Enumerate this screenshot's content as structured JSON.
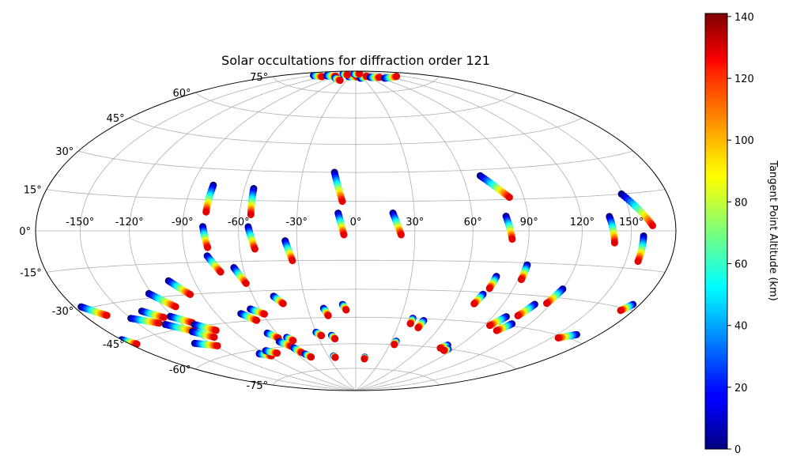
{
  "chart_data": {
    "type": "scatter",
    "title": "Solar occultations for diffraction order 121",
    "projection": "hammer",
    "grid": true,
    "longitude_ticks": [
      {
        "value": -150,
        "label": "-150°"
      },
      {
        "value": -120,
        "label": "-120°"
      },
      {
        "value": -90,
        "label": "-90°"
      },
      {
        "value": -60,
        "label": "-60°"
      },
      {
        "value": -30,
        "label": "-30°"
      },
      {
        "value": 0,
        "label": "0°"
      },
      {
        "value": 30,
        "label": "30°"
      },
      {
        "value": 60,
        "label": "60°"
      },
      {
        "value": 90,
        "label": "90°"
      },
      {
        "value": 120,
        "label": "120°"
      },
      {
        "value": 150,
        "label": "150°"
      }
    ],
    "latitude_ticks": [
      {
        "value": -75,
        "label": "-75°"
      },
      {
        "value": -60,
        "label": "-60°"
      },
      {
        "value": -45,
        "label": "-45°"
      },
      {
        "value": -30,
        "label": "-30°"
      },
      {
        "value": -15,
        "label": "-15°"
      },
      {
        "value": 0,
        "label": "0°"
      },
      {
        "value": 15,
        "label": "15°"
      },
      {
        "value": 30,
        "label": "30°"
      },
      {
        "value": 45,
        "label": "45°"
      },
      {
        "value": 60,
        "label": "60°"
      },
      {
        "value": 75,
        "label": "75°"
      }
    ],
    "colorbar": {
      "label": "Tangent Point Altitude (km)",
      "colormap": "jet",
      "range": [
        0,
        141
      ],
      "ticks": [
        0,
        20,
        40,
        60,
        80,
        100,
        120,
        140
      ],
      "tick_labels": [
        "0",
        "20",
        "40",
        "60",
        "80",
        "100",
        "120",
        "140"
      ]
    },
    "tracks": [
      {
        "lon0": -78,
        "lat0": 22,
        "lon1": -78,
        "lat1": 9
      },
      {
        "lon0": -55,
        "lat0": 21,
        "lon1": -54,
        "lat1": 8
      },
      {
        "lon0": -12,
        "lat0": 30,
        "lon1": -7,
        "lat1": 15
      },
      {
        "lon0": -9,
        "lat0": 9,
        "lon1": -6,
        "lat1": -2
      },
      {
        "lon0": 19,
        "lat0": 9,
        "lon1": 23,
        "lat1": -2
      },
      {
        "lon0": 70,
        "lat0": 27,
        "lon1": 82,
        "lat1": 16
      },
      {
        "lon0": 78,
        "lat0": 7,
        "lon1": 81,
        "lat1": -4
      },
      {
        "lon0": 137,
        "lat0": 6,
        "lon1": 140,
        "lat1": -5
      },
      {
        "lon0": 149,
        "lat0": 15,
        "lon1": 164,
        "lat1": 2
      },
      {
        "lon0": 158,
        "lat0": -2,
        "lon1": 158,
        "lat1": -12
      },
      {
        "lon0": -79,
        "lat0": 2,
        "lon1": -77,
        "lat1": -8
      },
      {
        "lon0": -55,
        "lat0": 2,
        "lon1": -52,
        "lat1": -9
      },
      {
        "lon0": -36,
        "lat0": -5,
        "lon1": -33,
        "lat1": -15
      },
      {
        "lon0": -78,
        "lat0": -12,
        "lon1": -73,
        "lat1": -20
      },
      {
        "lon0": -65,
        "lat0": -18,
        "lon1": -61,
        "lat1": -26
      },
      {
        "lon0": 92,
        "lat0": -16,
        "lon1": 92,
        "lat1": -23
      },
      {
        "lon0": 77,
        "lat0": -22,
        "lon1": 76,
        "lat1": -28
      },
      {
        "lon0": 74,
        "lat0": -31,
        "lon1": 72,
        "lat1": -36
      },
      {
        "lon0": 120,
        "lat0": -26,
        "lon1": 117,
        "lat1": -33
      },
      {
        "lon0": 110,
        "lat0": -34,
        "lon1": 106,
        "lat1": -40
      },
      {
        "lon0": 99,
        "lat0": -41,
        "lon1": 94,
        "lat1": -46
      },
      {
        "lon0": 108,
        "lat0": -44,
        "lon1": 103,
        "lat1": -48
      },
      {
        "lon0": -105,
        "lat0": -23,
        "lon1": -97,
        "lat1": -30
      },
      {
        "lon0": -122,
        "lat0": -28,
        "lon1": -112,
        "lat1": -35
      },
      {
        "lon0": -48,
        "lat0": -33,
        "lon1": -44,
        "lat1": -37
      },
      {
        "lon0": -175,
        "lat0": -29,
        "lon1": -164,
        "lat1": -34
      },
      {
        "lon0": -150,
        "lat0": -37,
        "lon1": -135,
        "lat1": -41
      },
      {
        "lon0": -137,
        "lat0": -35,
        "lon1": -127,
        "lat1": -39
      },
      {
        "lon0": -122,
        "lat0": -39,
        "lon1": -112,
        "lat1": -43
      },
      {
        "lon0": -132,
        "lat0": -42,
        "lon1": -118,
        "lat1": -47
      },
      {
        "lon0": -112,
        "lat0": -44,
        "lon1": -102,
        "lat1": -48
      },
      {
        "lon0": -120,
        "lat0": -47,
        "lon1": -110,
        "lat1": -51
      },
      {
        "lon0": -132,
        "lat0": -52,
        "lon1": -118,
        "lat1": -55
      },
      {
        "lon0": -74,
        "lat0": -41,
        "lon1": -67,
        "lat1": -45
      },
      {
        "lon0": -66,
        "lat0": -39,
        "lon1": -59,
        "lat1": -42
      },
      {
        "lon0": -20,
        "lat0": -40,
        "lon1": -18,
        "lat1": -44
      },
      {
        "lon0": -8,
        "lat0": -38,
        "lon1": -6,
        "lat1": -41
      },
      {
        "lon0": 38,
        "lat0": -45,
        "lon1": 38,
        "lat1": -48
      },
      {
        "lon0": 46,
        "lat0": -46,
        "lon1": 45,
        "lat1": -50
      },
      {
        "lon0": 164,
        "lat0": -43,
        "lon1": 155,
        "lat1": -46
      },
      {
        "lon0": 175,
        "lat0": -28,
        "lon1": 171,
        "lat1": -31
      },
      {
        "lon0": -180,
        "lat0": -43,
        "lon1": -175,
        "lat1": -46
      },
      {
        "lon0": -67,
        "lat0": -52,
        "lon1": -62,
        "lat1": -55
      },
      {
        "lon0": -55,
        "lat0": -55,
        "lon1": -52,
        "lat1": -57
      },
      {
        "lon0": -64,
        "lat0": -57,
        "lon1": -58,
        "lat1": -60
      },
      {
        "lon0": -57,
        "lat0": -61,
        "lon1": -54,
        "lat1": -64
      },
      {
        "lon0": -52,
        "lat0": -65,
        "lon1": -49,
        "lat1": -67
      },
      {
        "lon0": -30,
        "lat0": -53,
        "lon1": -27,
        "lat1": -55
      },
      {
        "lon0": -19,
        "lat0": -55,
        "lon1": -17,
        "lat1": -57
      },
      {
        "lon0": -24,
        "lat0": -67,
        "lon1": -23,
        "lat1": -68
      },
      {
        "lon0": 10,
        "lat0": -68,
        "lon1": 10,
        "lat1": -69
      },
      {
        "lon0": 34,
        "lat0": -58,
        "lon1": 34,
        "lat1": -60
      },
      {
        "lon0": 80,
        "lat0": -58,
        "lon1": 77,
        "lat1": -60
      },
      {
        "lon0": 85,
        "lat0": -60,
        "lon1": 83,
        "lat1": -61
      },
      {
        "lon0": -95,
        "lat0": -62,
        "lon1": -87,
        "lat1": -64
      },
      {
        "lon0": -85,
        "lat0": -61,
        "lon1": -78,
        "lat1": -63
      },
      {
        "lon0": -150,
        "lat0": 82,
        "lon1": -125,
        "lat1": 83
      },
      {
        "lon0": -125,
        "lat0": 84,
        "lon1": -95,
        "lat1": 85
      },
      {
        "lon0": -80,
        "lat0": 84,
        "lon1": -50,
        "lat1": 83
      },
      {
        "lon0": -40,
        "lat0": 86,
        "lon1": 10,
        "lat1": 86
      },
      {
        "lon0": 20,
        "lat0": 85,
        "lon1": 60,
        "lat1": 86
      },
      {
        "lon0": 65,
        "lat0": 85,
        "lon1": 95,
        "lat1": 84
      },
      {
        "lon0": 100,
        "lat0": 83,
        "lon1": 140,
        "lat1": 82
      },
      {
        "lon0": -20,
        "lat0": 88,
        "lon1": 40,
        "lat1": 88
      },
      {
        "lon0": -100,
        "lat0": 87,
        "lon1": -60,
        "lat1": 87
      }
    ]
  }
}
